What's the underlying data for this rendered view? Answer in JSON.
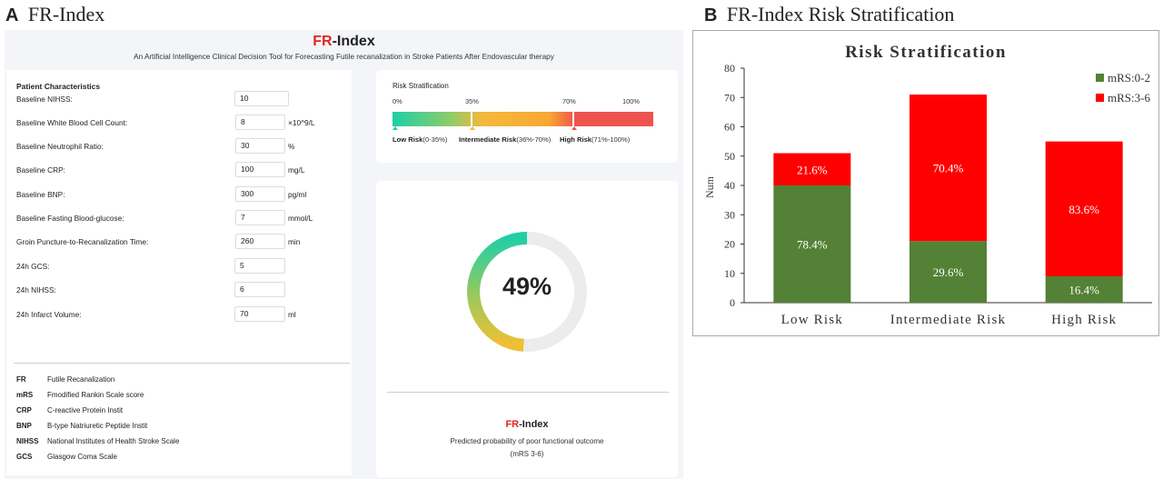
{
  "panel_a": {
    "letter": "A",
    "title": "FR-Index"
  },
  "panel_b": {
    "letter": "B",
    "title": "FR-Index Risk Stratification"
  },
  "app": {
    "logo_prefix": "FR",
    "logo_suffix": "-Index",
    "subtitle": "An Artificial Intelligence Clinical Decision Tool for Forecasting Futile recanalization in Stroke Patients After Endovascular therapy",
    "patient_section_title": "Patient Characteristics",
    "fields": [
      {
        "label": "Baseline NIHSS:",
        "value": "10",
        "unit": ""
      },
      {
        "label": "Baseline White Blood Cell Count:",
        "value": "8",
        "unit": "×10^9/L"
      },
      {
        "label": "Baseline Neutrophil Ratio:",
        "value": "30",
        "unit": "%"
      },
      {
        "label": "Baseline CRP:",
        "value": "100",
        "unit": "mg/L"
      },
      {
        "label": "Baseline BNP:",
        "value": "300",
        "unit": "pg/ml"
      },
      {
        "label": "Baseline Fasting Blood-glucose:",
        "value": "7",
        "unit": "mmol/L"
      },
      {
        "label": "Groin Puncture-to-Recanalization Time:",
        "value": "260",
        "unit": "min"
      },
      {
        "label": "24h GCS:",
        "value": "5",
        "unit": ""
      },
      {
        "label": "24h NIHSS:",
        "value": "6",
        "unit": ""
      },
      {
        "label": "24h Infarct Volume:",
        "value": "70",
        "unit": "ml"
      }
    ],
    "abbreviations": [
      {
        "abbr": "FR",
        "def": "Futile Recanalization"
      },
      {
        "abbr": "mRS",
        "def": "Fmodified Rankin Scale score"
      },
      {
        "abbr": "CRP",
        "def": "C-reactive Protein Instit"
      },
      {
        "abbr": "BNP",
        "def": "B-type Natriuretic Peptide Instit"
      },
      {
        "abbr": "NIHSS",
        "def": "National Institutes of Health Stroke Scale"
      },
      {
        "abbr": "GCS",
        "def": "Glasgow Coma Scale"
      }
    ],
    "risk": {
      "title": "Risk Stratification",
      "ticks": [
        "0%",
        "35%",
        "70%",
        "100%"
      ],
      "low_label": "Low Risk",
      "low_range": "(0-35%)",
      "mid_label": "Intermediate Risk",
      "mid_range": "(36%-70%)",
      "high_label": "High Risk",
      "high_range": "(71%-100%)",
      "colors": {
        "low": "#2ecfa6",
        "mid": "#f6b83a",
        "high": "#ef5350"
      }
    },
    "gauge": {
      "value_text": "49%",
      "value_fraction": 0.49,
      "caption_line1": "Predicted probability of poor functional outcome",
      "caption_line2": "(mRS 3-6)"
    }
  },
  "chart_data": {
    "type": "bar",
    "stacked": true,
    "title": "Risk Stratification",
    "xlabel": "",
    "ylabel": "Num",
    "ylim": [
      0,
      80
    ],
    "yticks": [
      0,
      10,
      20,
      30,
      40,
      50,
      60,
      70,
      80
    ],
    "categories": [
      "Low Risk",
      "Intermediate Risk",
      "High Risk"
    ],
    "legend_position": "top-right",
    "grid": false,
    "series": [
      {
        "name": "mRS:0-2",
        "color": "#538135",
        "values": [
          40,
          21,
          9
        ],
        "labels": [
          "78.4%",
          "29.6%",
          "16.4%"
        ]
      },
      {
        "name": "mRS:3-6",
        "color": "#ff0000",
        "values": [
          11,
          50,
          46
        ],
        "labels": [
          "21.6%",
          "70.4%",
          "83.6%"
        ]
      }
    ]
  }
}
